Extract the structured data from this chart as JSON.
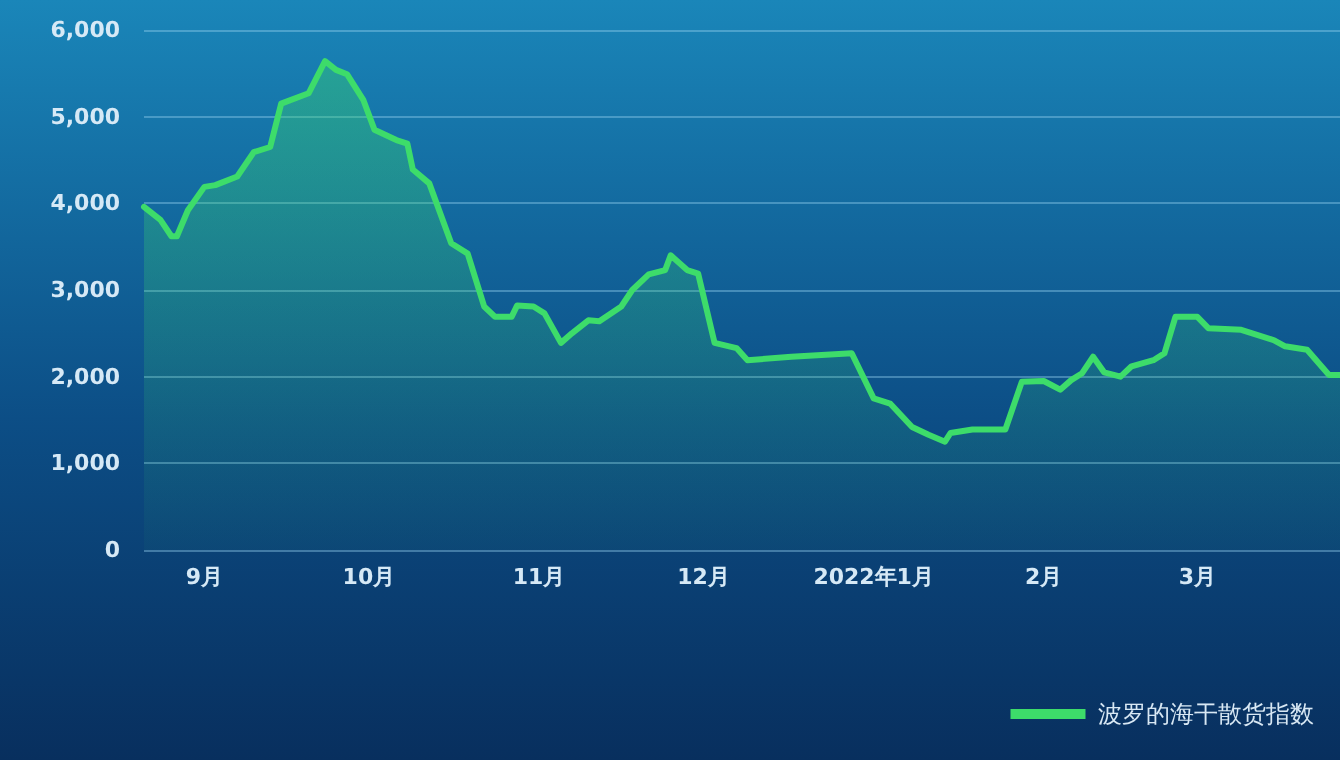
{
  "chart_data": {
    "type": "area",
    "x": [
      "2021-08-21",
      "2021-08-24",
      "2021-08-26",
      "2021-08-27",
      "2021-08-29",
      "2021-09-01",
      "2021-09-03",
      "2021-09-07",
      "2021-09-10",
      "2021-09-13",
      "2021-09-15",
      "2021-09-20",
      "2021-09-23",
      "2021-09-25",
      "2021-09-27",
      "2021-09-30",
      "2021-10-02",
      "2021-10-06",
      "2021-10-08",
      "2021-10-09",
      "2021-10-12",
      "2021-10-16",
      "2021-10-19",
      "2021-10-22",
      "2021-10-24",
      "2021-10-27",
      "2021-10-28",
      "2021-10-31",
      "2021-11-02",
      "2021-11-05",
      "2021-11-07",
      "2021-11-10",
      "2021-11-12",
      "2021-11-16",
      "2021-11-18",
      "2021-11-21",
      "2021-11-24",
      "2021-11-25",
      "2021-11-28",
      "2021-11-30",
      "2021-12-03",
      "2021-12-07",
      "2021-12-09",
      "2021-12-17",
      "2021-12-28",
      "2022-01-01",
      "2022-01-04",
      "2022-01-08",
      "2022-01-11",
      "2022-01-14",
      "2022-01-15",
      "2022-01-19",
      "2022-01-25",
      "2022-01-28",
      "2022-02-01",
      "2022-02-04",
      "2022-02-06",
      "2022-02-08",
      "2022-02-10",
      "2022-02-12",
      "2022-02-15",
      "2022-02-17",
      "2022-02-21",
      "2022-02-23",
      "2022-02-25",
      "2022-03-01",
      "2022-03-03",
      "2022-03-09",
      "2022-03-15",
      "2022-03-17",
      "2022-03-21",
      "2022-03-25",
      "2022-03-27"
    ],
    "series": [
      {
        "name": "波罗的海干散货指数",
        "color": "#3ddc6a",
        "values": [
          3960,
          3810,
          3620,
          3620,
          3920,
          4190,
          4210,
          4310,
          4590,
          4650,
          5150,
          5270,
          5640,
          5540,
          5490,
          5190,
          4850,
          4730,
          4690,
          4390,
          4230,
          3540,
          3420,
          2810,
          2690,
          2690,
          2820,
          2810,
          2730,
          2390,
          2500,
          2650,
          2640,
          2810,
          3000,
          3180,
          3230,
          3400,
          3230,
          3190,
          2390,
          2330,
          2190,
          2230,
          2270,
          1750,
          1690,
          1420,
          1330,
          1250,
          1350,
          1390,
          1390,
          1940,
          1950,
          1850,
          1960,
          2040,
          2230,
          2050,
          2000,
          2120,
          2190,
          2270,
          2690,
          2690,
          2560,
          2540,
          2420,
          2350,
          2310,
          2020,
          2020
        ]
      }
    ],
    "xlim": [
      "2021-08-21",
      "2022-03-27"
    ],
    "xticks": [
      {
        "value": "2021-09-01",
        "label": "9月"
      },
      {
        "value": "2021-10-01",
        "label": "10月"
      },
      {
        "value": "2021-11-01",
        "label": "11月"
      },
      {
        "value": "2021-12-01",
        "label": "12月"
      },
      {
        "value": "2022-01-01",
        "label": "2022年1月"
      },
      {
        "value": "2022-02-01",
        "label": "2月"
      },
      {
        "value": "2022-03-01",
        "label": "3月"
      }
    ],
    "ylim": [
      0,
      6000
    ],
    "yticks": [
      {
        "value": 0,
        "label": "0"
      },
      {
        "value": 1000,
        "label": "1,000"
      },
      {
        "value": 2000,
        "label": "2,000"
      },
      {
        "value": 3000,
        "label": "3,000"
      },
      {
        "value": 4000,
        "label": "4,000"
      },
      {
        "value": 5000,
        "label": "5,000"
      },
      {
        "value": 6000,
        "label": "6,000"
      }
    ],
    "grid": "y",
    "legend": "bottom right",
    "marker": "none",
    "line_style": "solid"
  }
}
